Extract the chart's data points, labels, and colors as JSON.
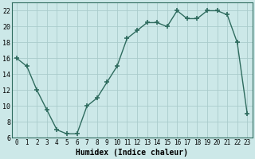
{
  "x": [
    0,
    1,
    2,
    3,
    4,
    5,
    6,
    7,
    8,
    9,
    10,
    11,
    12,
    13,
    14,
    15,
    16,
    17,
    18,
    19,
    20,
    21,
    22,
    23
  ],
  "y": [
    16,
    15,
    12,
    9.5,
    7,
    6.5,
    6.5,
    10,
    11,
    13,
    15,
    18.5,
    19.5,
    20.5,
    20.5,
    20,
    22,
    21,
    21,
    22,
    22,
    21.5,
    18,
    9
  ],
  "xlabel": "Humidex (Indice chaleur)",
  "xlim": [
    -0.5,
    23.5
  ],
  "ylim": [
    6,
    23
  ],
  "yticks": [
    6,
    8,
    10,
    12,
    14,
    16,
    18,
    20,
    22
  ],
  "xticks": [
    0,
    1,
    2,
    3,
    4,
    5,
    6,
    7,
    8,
    9,
    10,
    11,
    12,
    13,
    14,
    15,
    16,
    17,
    18,
    19,
    20,
    21,
    22,
    23
  ],
  "line_color": "#2e6b5e",
  "marker": "+",
  "marker_size": 4,
  "marker_lw": 1.2,
  "line_width": 1.0,
  "bg_color": "#cce8e8",
  "grid_color": "#aacccc",
  "spine_color": "#2e6b5e",
  "tick_fontsize": 5.5,
  "xlabel_fontsize": 7,
  "ylabel_fontsize": 6
}
